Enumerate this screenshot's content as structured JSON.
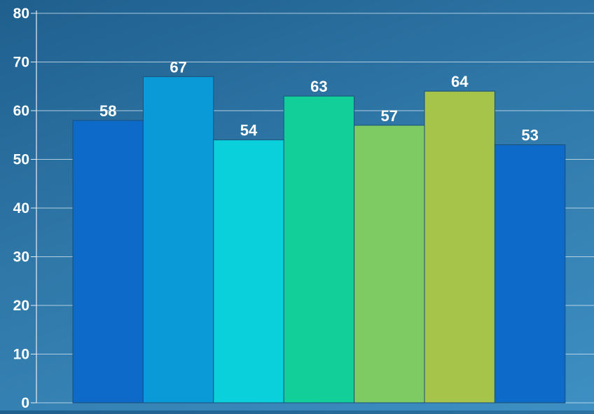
{
  "chart_data": {
    "type": "bar",
    "categories": [
      "",
      "",
      "",
      "",
      "",
      "",
      ""
    ],
    "values": [
      58,
      67,
      54,
      63,
      57,
      64,
      53
    ],
    "colors": [
      "#0e6ac8",
      "#0a9ad8",
      "#0ad0dc",
      "#12cf9a",
      "#7dcb62",
      "#a6c34a",
      "#0e6ac8"
    ],
    "title": "",
    "xlabel": "",
    "ylabel": "",
    "ylim": [
      0,
      80
    ],
    "yticks": [
      0,
      10,
      20,
      30,
      40,
      50,
      60,
      70,
      80
    ],
    "grid": true,
    "legend": "none",
    "data_labels": true
  }
}
